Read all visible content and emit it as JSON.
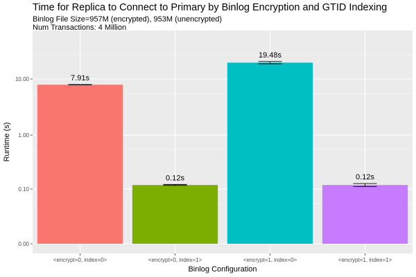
{
  "title": "Time for Replica to Connect to Primary by Binlog Encryption and GTID Indexing",
  "subtitle_lines": [
    "Binlog File Size=957M (encrypted), 953M (unencrypted)",
    "Num Transactions: 4 Million"
  ],
  "chart_data": {
    "type": "bar",
    "title": "Time for Replica to Connect to Primary by Binlog Encryption and GTID Indexing",
    "subtitle": "Binlog File Size=957M (encrypted), 953M (unencrypted)\nNum Transactions: 4 Million",
    "xlabel": "Binlog Configuration",
    "ylabel": "Runtime (s)",
    "y_scale": "pseudo-log",
    "y_ticks": [
      0.0,
      0.1,
      1.0,
      10.0
    ],
    "y_tick_labels": [
      "0.00",
      "0.10",
      "1.00",
      "10.00"
    ],
    "grid": true,
    "legend": "none",
    "categories": [
      "<encrypt=0, index=0>",
      "<encrypt=0, index=1>",
      "<encrypt=1, index=0>",
      "<encrypt=1, index=1>"
    ],
    "values": [
      7.91,
      0.12,
      19.48,
      0.12
    ],
    "error_low": [
      7.85,
      0.118,
      18.6,
      0.112
    ],
    "error_high": [
      7.97,
      0.123,
      20.4,
      0.128
    ],
    "data_labels": [
      "7.91s",
      "0.12s",
      "19.48s",
      "0.12s"
    ],
    "colors": [
      "#F8766D",
      "#7CAE00",
      "#00BFC4",
      "#C77CFF"
    ],
    "panel_background": "#EBEBEB"
  }
}
